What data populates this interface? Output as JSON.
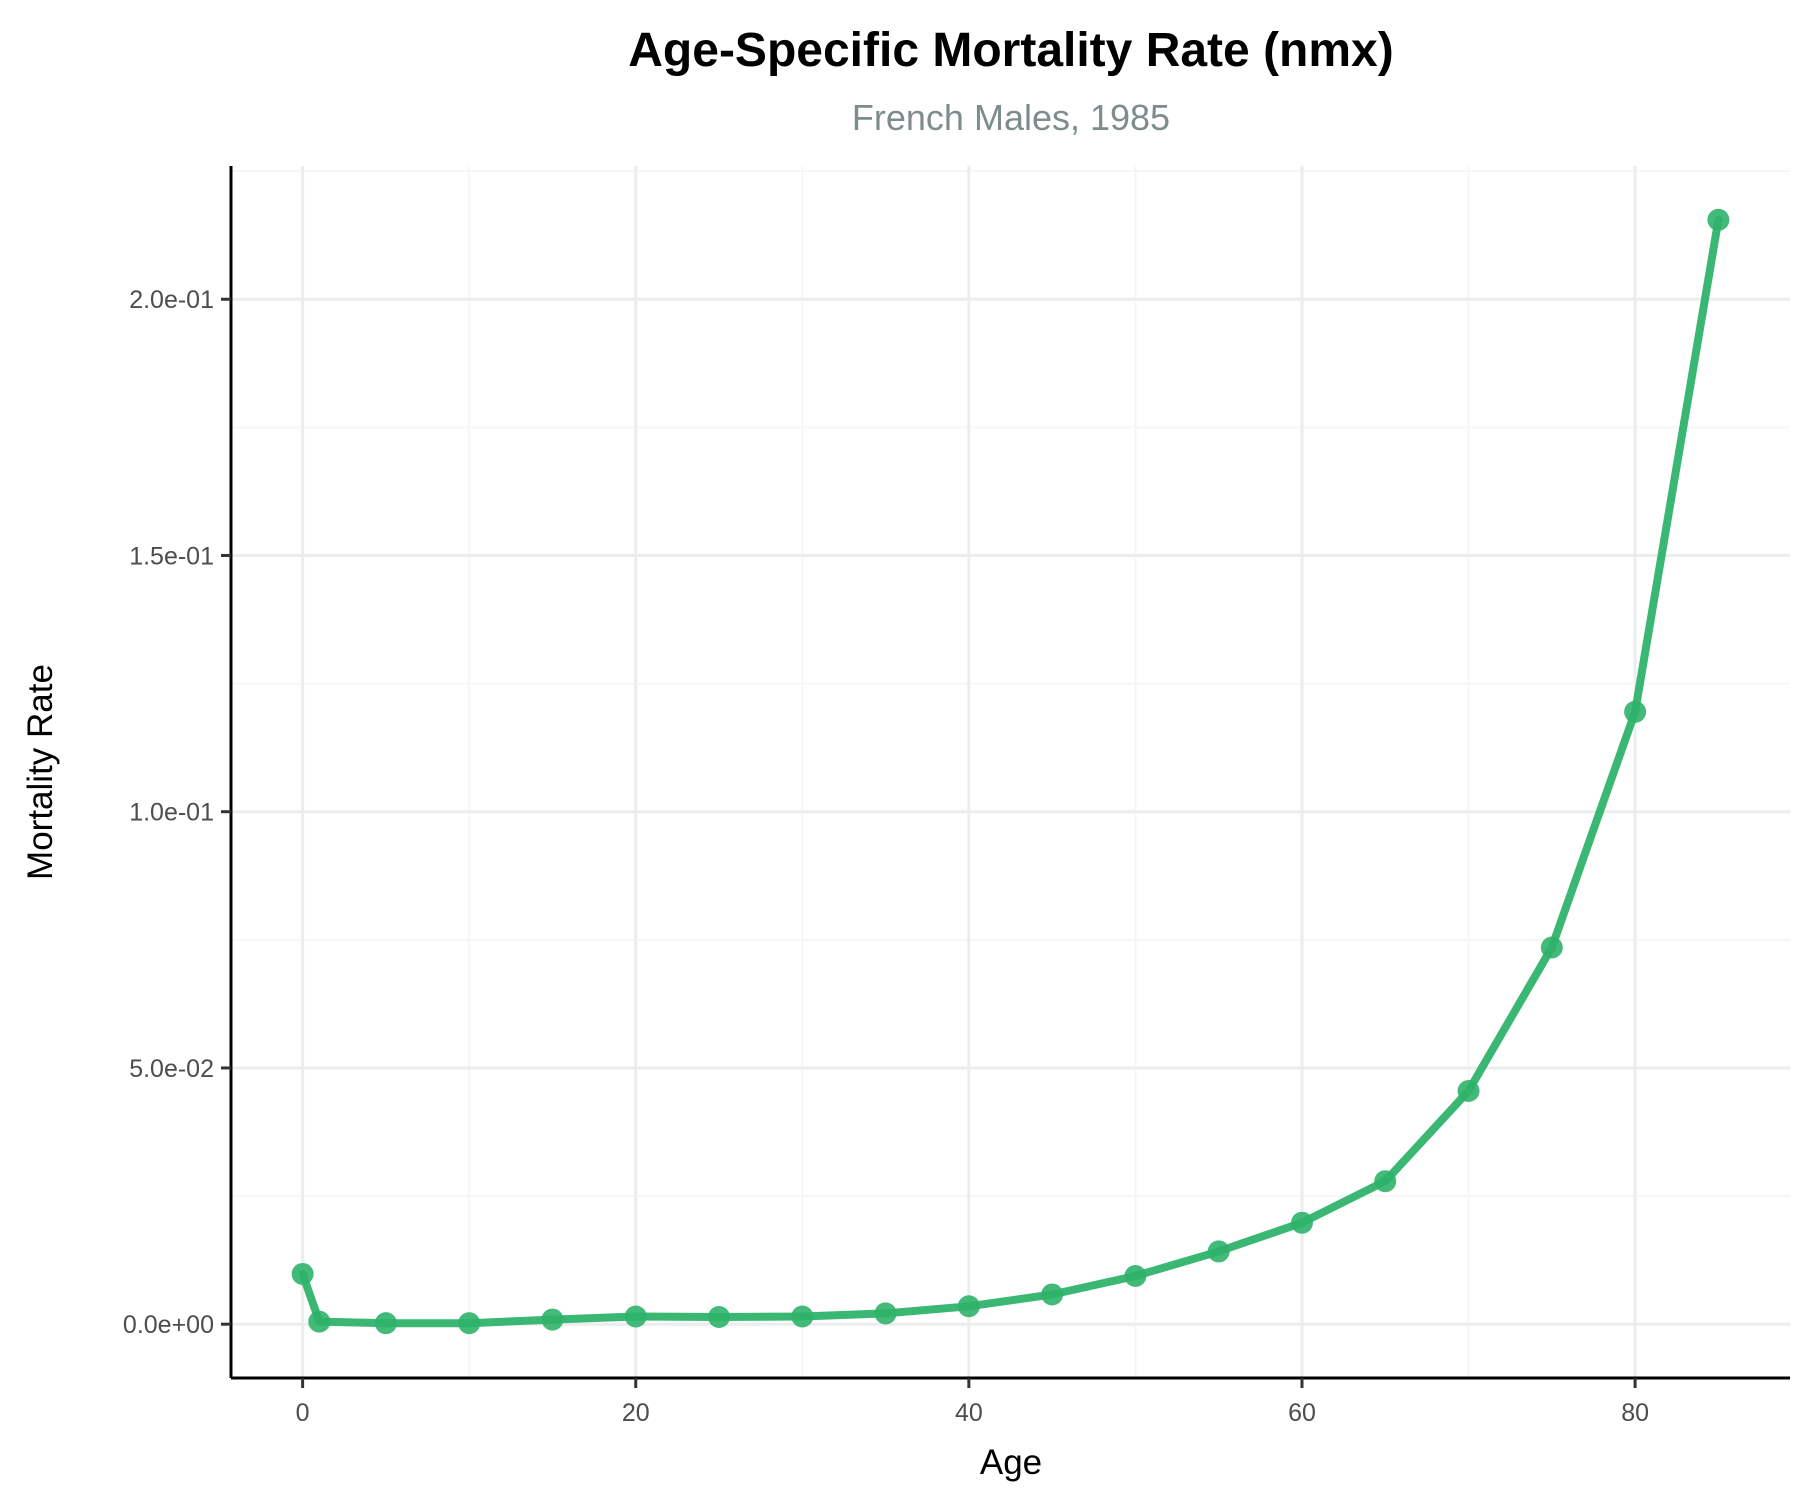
{
  "chart_data": {
    "type": "line",
    "title": "Age-Specific Mortality Rate (nmx)",
    "subtitle": "French Males, 1985",
    "xlabel": "Age",
    "ylabel": "Mortality Rate",
    "xlim": [
      -4.3,
      89.3
    ],
    "ylim": [
      -0.0105,
      0.226
    ],
    "x_ticks": [
      0,
      20,
      40,
      60,
      80
    ],
    "x_tick_labels": [
      "0",
      "20",
      "40",
      "60",
      "80"
    ],
    "y_ticks": [
      0,
      0.05,
      0.1,
      0.15,
      0.2
    ],
    "y_tick_labels": [
      "0.0e+00",
      "5.0e-02",
      "1.0e-01",
      "1.5e-01",
      "2.0e-01"
    ],
    "grid": true,
    "line_color": "#2fb36a",
    "series": [
      {
        "x": [
          0,
          1,
          5,
          10,
          15,
          20,
          25,
          30,
          35,
          40,
          45,
          50,
          55,
          60,
          65,
          70,
          75,
          80,
          85
        ],
        "values": [
          0.0098,
          0.0005,
          0.0002,
          0.0002,
          0.0009,
          0.0015,
          0.0014,
          0.0015,
          0.0021,
          0.0035,
          0.0058,
          0.0094,
          0.0142,
          0.0198,
          0.0279,
          0.0455,
          0.0735,
          0.1195,
          0.2155
        ]
      }
    ]
  }
}
